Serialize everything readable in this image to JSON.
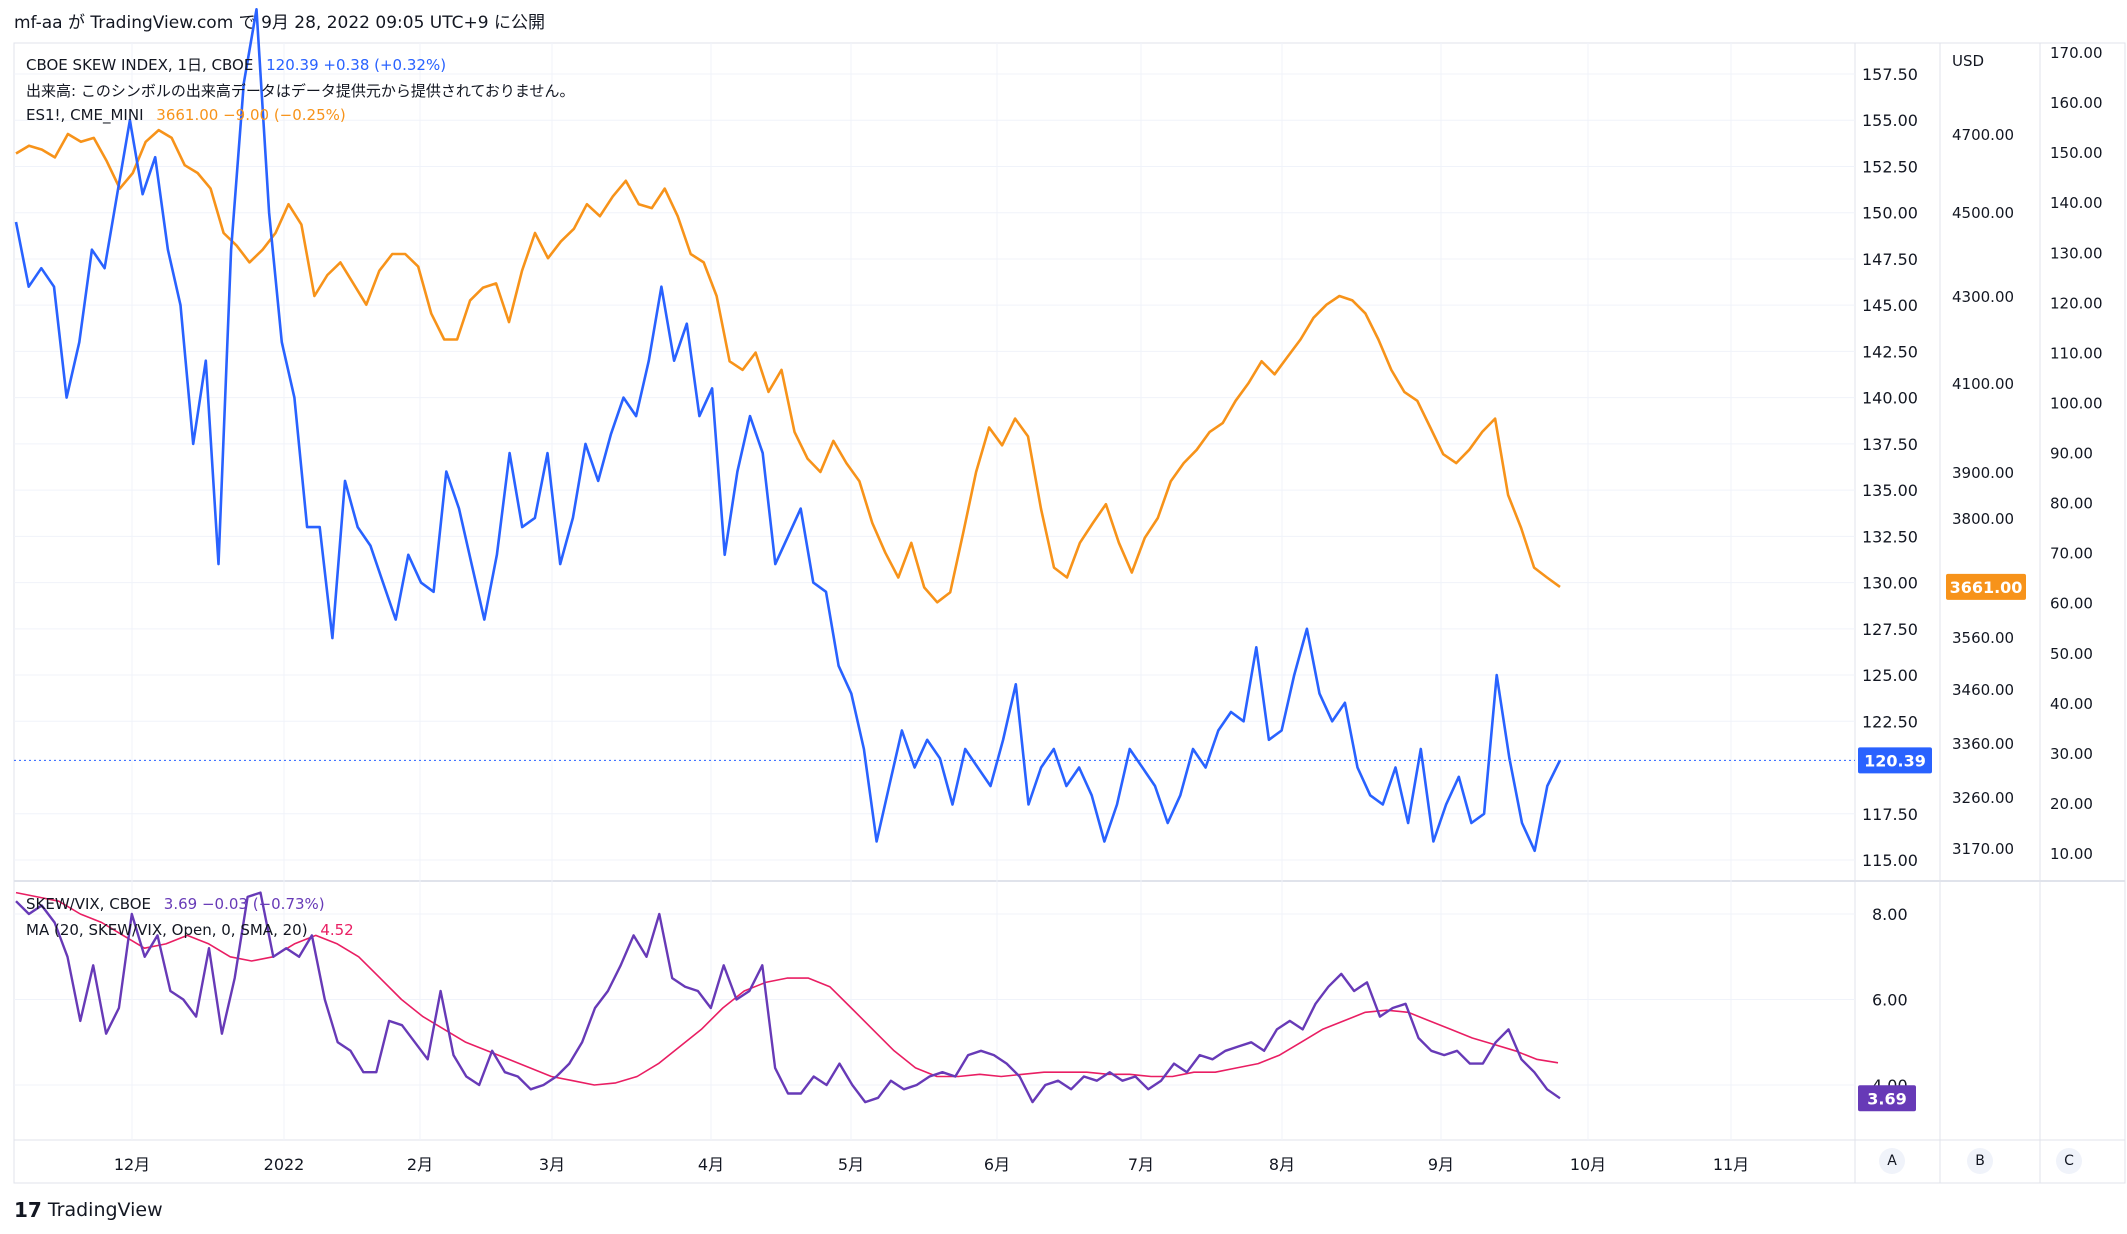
{
  "header": {
    "text": "mf-aa が TradingView.com で 9月 28, 2022 09:05 UTC+9 に公開"
  },
  "legend": {
    "skew": {
      "name": "CBOE SKEW INDEX, 1日, CBOE",
      "value": "120.39",
      "change": "+0.38 (+0.32%)",
      "color": "#2962ff"
    },
    "volume_note": "出来高: このシンボルの出来高データはデータ提供元から提供されておりません。",
    "es": {
      "name": "ES1!, CME_MINI",
      "value": "3661.00",
      "change": "−9.00 (−0.25%)",
      "color": "#f7931a"
    },
    "ratio": {
      "name": "SKEW/VIX, CBOE",
      "value": "3.69",
      "change": "−0.03 (−0.73%)",
      "color": "#673ab7"
    },
    "ma": {
      "name": "MA (20, SKEW/VIX, Open, 0, SMA, 20)",
      "value": "4.52",
      "color": "#e91e63"
    }
  },
  "axes": {
    "skew_ticks": [
      "157.50",
      "155.00",
      "152.50",
      "150.00",
      "147.50",
      "145.00",
      "142.50",
      "140.00",
      "137.50",
      "135.00",
      "132.50",
      "130.00",
      "127.50",
      "125.00",
      "122.50",
      "117.50",
      "115.00"
    ],
    "es_currency": "USD",
    "es_ticks": [
      "4700.00",
      "4500.00",
      "4300.00",
      "4100.00",
      "3900.00",
      "3800.00",
      "3560.00",
      "3460.00",
      "3360.00",
      "3260.00",
      "3170.00"
    ],
    "vix_ticks": [
      "170.00",
      "160.00",
      "150.00",
      "140.00",
      "130.00",
      "120.00",
      "110.00",
      "100.00",
      "90.00",
      "80.00",
      "70.00",
      "60.00",
      "50.00",
      "40.00",
      "30.00",
      "20.00",
      "10.00"
    ],
    "ratio_ticks": [
      "8.00",
      "6.00",
      "4.00"
    ],
    "x_labels": [
      "12月",
      "2022",
      "2月",
      "3月",
      "4月",
      "5月",
      "6月",
      "7月",
      "8月",
      "9月",
      "10月",
      "11月"
    ],
    "badges": {
      "es": "3661.00",
      "skew": "120.39",
      "ratio": "3.69"
    }
  },
  "corner_buttons": [
    "A",
    "B",
    "C"
  ],
  "footer": {
    "brand": "TradingView"
  },
  "chart_data": {
    "type": "line",
    "x_range": [
      "2021-11",
      "2022-09-27"
    ],
    "series": [
      {
        "name": "CBOE SKEW INDEX",
        "color": "#2962ff",
        "axis": "left",
        "values": [
          149.5,
          146.0,
          147.0,
          146.0,
          140.0,
          143.0,
          148.0,
          147.0,
          151.0,
          155.0,
          151.0,
          153.0,
          148.0,
          145.0,
          137.5,
          142.0,
          131.0,
          148.0,
          157.0,
          161.0,
          150.0,
          143.0,
          140.0,
          133.0,
          133.0,
          127.0,
          135.5,
          133.0,
          132.0,
          130.0,
          128.0,
          131.5,
          130.0,
          129.5,
          136.0,
          134.0,
          131.0,
          128.0,
          131.5,
          137.0,
          133.0,
          133.5,
          137.0,
          131.0,
          133.5,
          137.5,
          135.5,
          138.0,
          140.0,
          139.0,
          142.0,
          146.0,
          142.0,
          144.0,
          139.0,
          140.5,
          131.5,
          136.0,
          139.0,
          137.0,
          131.0,
          132.5,
          134.0,
          130.0,
          129.5,
          125.5,
          124.0,
          121.0,
          116.0,
          119.0,
          122.0,
          120.0,
          121.5,
          120.5,
          118.0,
          121.0,
          120.0,
          119.0,
          121.5,
          124.5,
          118.0,
          120.0,
          121.0,
          119.0,
          120.0,
          118.5,
          116.0,
          118.0,
          121.0,
          120.0,
          119.0,
          117.0,
          118.5,
          121.0,
          120.0,
          122.0,
          123.0,
          122.5,
          126.5,
          121.5,
          122.0,
          125.0,
          127.5,
          124.0,
          122.5,
          123.5,
          120.0,
          118.5,
          118.0,
          120.0,
          117.0,
          121.0,
          116.0,
          118.0,
          119.5,
          117.0,
          117.5,
          125.0,
          120.5,
          117.0,
          115.5,
          119.0,
          120.39
        ]
      },
      {
        "name": "ES1!",
        "color": "#f7931a",
        "axis": "es",
        "values": [
          4650,
          4670,
          4660,
          4640,
          4700,
          4680,
          4690,
          4630,
          4560,
          4600,
          4680,
          4710,
          4690,
          4620,
          4600,
          4560,
          4450,
          4420,
          4380,
          4410,
          4450,
          4520,
          4470,
          4300,
          4350,
          4380,
          4330,
          4280,
          4360,
          4400,
          4400,
          4370,
          4260,
          4200,
          4200,
          4290,
          4320,
          4330,
          4240,
          4360,
          4450,
          4390,
          4430,
          4460,
          4520,
          4490,
          4540,
          4580,
          4520,
          4510,
          4560,
          4490,
          4400,
          4380,
          4300,
          4150,
          4130,
          4170,
          4080,
          4130,
          3990,
          3930,
          3900,
          3970,
          3920,
          3880,
          3790,
          3730,
          3680,
          3750,
          3660,
          3630,
          3650,
          3770,
          3900,
          4000,
          3960,
          4020,
          3980,
          3820,
          3700,
          3680,
          3750,
          3790,
          3830,
          3750,
          3690,
          3760,
          3800,
          3880,
          3920,
          3950,
          3990,
          4010,
          4060,
          4100,
          4150,
          4120,
          4160,
          4200,
          4250,
          4280,
          4300,
          4290,
          4260,
          4200,
          4130,
          4080,
          4060,
          4000,
          3940,
          3920,
          3950,
          3990,
          4020,
          3850,
          3780,
          3700,
          3680,
          3661
        ]
      },
      {
        "name": "SKEW/VIX",
        "color": "#673ab7",
        "axis": "ratio",
        "values": [
          8.3,
          8.0,
          8.2,
          7.8,
          7.0,
          5.5,
          6.8,
          5.2,
          5.8,
          8.0,
          7.0,
          7.5,
          6.2,
          6.0,
          5.6,
          7.2,
          5.2,
          6.5,
          8.4,
          8.5,
          7.0,
          7.2,
          7.0,
          7.5,
          6.0,
          5.0,
          4.8,
          4.3,
          4.3,
          5.5,
          5.4,
          5.0,
          4.6,
          6.2,
          4.7,
          4.2,
          4.0,
          4.8,
          4.3,
          4.2,
          3.9,
          4.0,
          4.2,
          4.5,
          5.0,
          5.8,
          6.2,
          6.8,
          7.5,
          7.0,
          8.0,
          6.5,
          6.3,
          6.2,
          5.8,
          6.8,
          6.0,
          6.2,
          6.8,
          4.4,
          3.8,
          3.8,
          4.2,
          4.0,
          4.5,
          4.0,
          3.6,
          3.7,
          4.1,
          3.9,
          4.0,
          4.2,
          4.3,
          4.2,
          4.7,
          4.8,
          4.7,
          4.5,
          4.2,
          3.6,
          4.0,
          4.1,
          3.9,
          4.2,
          4.1,
          4.3,
          4.1,
          4.2,
          3.9,
          4.1,
          4.5,
          4.3,
          4.7,
          4.6,
          4.8,
          4.9,
          5.0,
          4.8,
          5.3,
          5.5,
          5.3,
          5.9,
          6.3,
          6.6,
          6.2,
          6.4,
          5.6,
          5.8,
          5.9,
          5.1,
          4.8,
          4.7,
          4.8,
          4.5,
          4.5,
          5.0,
          5.3,
          4.6,
          4.3,
          3.9,
          3.69
        ]
      },
      {
        "name": "MA (20, SKEW/VIX, Open, 0, SMA, 20)",
        "color": "#e91e63",
        "axis": "ratio",
        "values": [
          8.5,
          8.4,
          8.3,
          8.0,
          7.8,
          7.5,
          7.2,
          7.3,
          7.5,
          7.3,
          7.0,
          6.9,
          7.0,
          7.3,
          7.5,
          7.3,
          7.0,
          6.5,
          6.0,
          5.6,
          5.3,
          5.0,
          4.8,
          4.6,
          4.4,
          4.2,
          4.1,
          4.0,
          4.05,
          4.2,
          4.5,
          4.9,
          5.3,
          5.8,
          6.2,
          6.4,
          6.5,
          6.5,
          6.3,
          5.8,
          5.3,
          4.8,
          4.4,
          4.2,
          4.2,
          4.25,
          4.2,
          4.25,
          4.3,
          4.3,
          4.3,
          4.25,
          4.25,
          4.2,
          4.2,
          4.3,
          4.3,
          4.4,
          4.5,
          4.7,
          5.0,
          5.3,
          5.5,
          5.7,
          5.75,
          5.7,
          5.5,
          5.3,
          5.1,
          4.95,
          4.8,
          4.6,
          4.52
        ]
      }
    ],
    "left_axis": {
      "min": 115,
      "max": 157.5
    },
    "ratio_axis": {
      "min": 4,
      "max": 8
    }
  }
}
